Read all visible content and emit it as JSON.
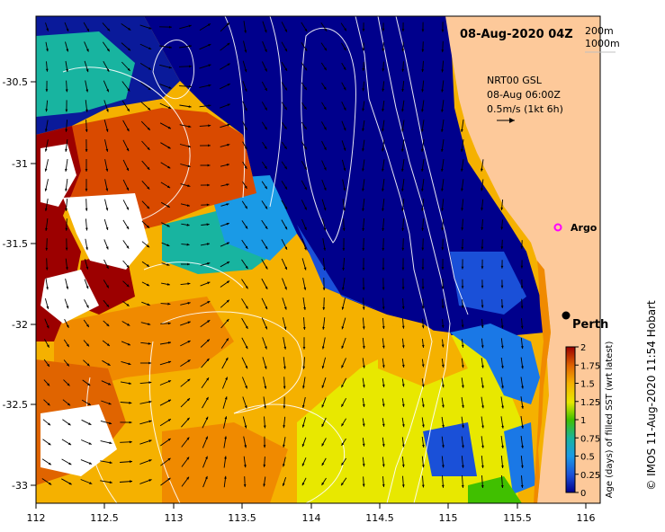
{
  "title": "08-Aug-2020 04Z",
  "depth_legend": [
    "200m",
    "1000m"
  ],
  "current_legend": {
    "line1": "NRT00 GSL",
    "line2": "08-Aug 06:00Z",
    "line3": "0.5m/s (1kt 6h)"
  },
  "labels": {
    "argo": "Argo",
    "city": "Perth",
    "credit": "© IMOS 11-Aug-2020 11:54 Hobart"
  },
  "colorbar": {
    "title": "Age (days) of filled SST (wrt latest)",
    "ticks": [
      "2",
      "1.75",
      "1.5",
      "1.25",
      "1",
      "0.75",
      "0.5",
      "0.25",
      "0"
    ],
    "colors": [
      "#9c0000",
      "#d94a00",
      "#f08a00",
      "#f5b100",
      "#e8e800",
      "#80d000",
      "#18b4a0",
      "#1a78e6",
      "#00008c"
    ]
  },
  "axes": {
    "x_ticks": [
      "112",
      "112.5",
      "113",
      "113.5",
      "114",
      "114.5",
      "115",
      "115.5",
      "116"
    ],
    "y_ticks": [
      "-30.5",
      "-31",
      "-31.5",
      "-32",
      "-32.5",
      "-33"
    ]
  },
  "colors": {
    "land": "#fdc99a",
    "contour": "#ffffff",
    "arrow": "#000000"
  }
}
